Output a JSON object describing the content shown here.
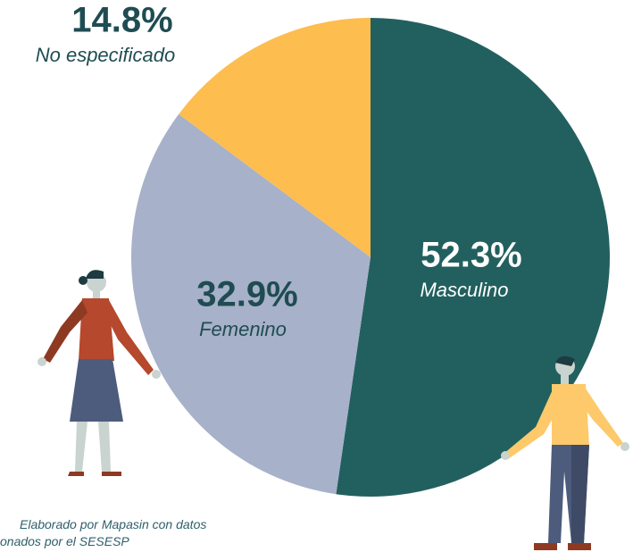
{
  "chart_data": {
    "type": "pie",
    "categories": [
      "Masculino",
      "Femenino",
      "No especificado"
    ],
    "values": [
      52.3,
      32.9,
      14.8
    ],
    "value_labels": [
      "52.3%",
      "32.9%",
      "14.8%"
    ],
    "colors": [
      "#22605f",
      "#a7b1c9",
      "#fdbd4f"
    ],
    "source": [
      "Elaborado por Mapasin con datos",
      "onados por el SESESP"
    ]
  }
}
